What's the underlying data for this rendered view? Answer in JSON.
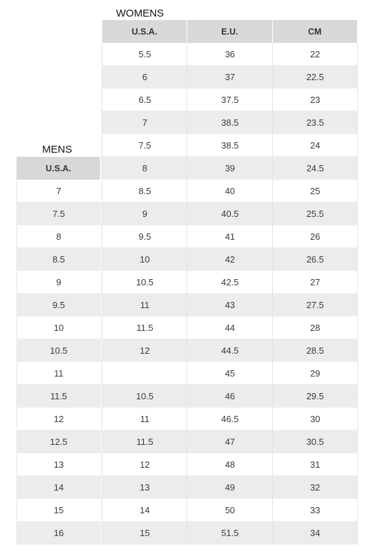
{
  "womens": {
    "title": "WOMENS",
    "headers": [
      "U.S.A.",
      "E.U.",
      "CM"
    ],
    "rows": [
      [
        "5.5",
        "36",
        "22"
      ],
      [
        "6",
        "37",
        "22.5"
      ],
      [
        "6.5",
        "37.5",
        "23"
      ],
      [
        "7",
        "38.5",
        "23.5"
      ],
      [
        "7.5",
        "38.5",
        "24"
      ],
      [
        "8",
        "39",
        "24.5"
      ],
      [
        "8.5",
        "40",
        "25"
      ],
      [
        "9",
        "40.5",
        "25.5"
      ],
      [
        "9.5",
        "41",
        "26"
      ],
      [
        "10",
        "42",
        "26.5"
      ],
      [
        "10.5",
        "42.5",
        "27"
      ],
      [
        "11",
        "43",
        "27.5"
      ],
      [
        "11.5",
        "44",
        "28"
      ],
      [
        "12",
        "44.5",
        "28.5"
      ],
      [
        "",
        "45",
        "29"
      ],
      [
        "10.5",
        "46",
        "29.5"
      ],
      [
        "11",
        "46.5",
        "30"
      ],
      [
        "11.5",
        "47",
        "30.5"
      ],
      [
        "12",
        "48",
        "31"
      ],
      [
        "13",
        "49",
        "32"
      ],
      [
        "14",
        "50",
        "33"
      ],
      [
        "15",
        "51.5",
        "34"
      ]
    ]
  },
  "mens": {
    "title": "MENS",
    "header": "U.S.A.",
    "rows": [
      "7",
      "7.5",
      "8",
      "8.5",
      "9",
      "9.5",
      "10",
      "10.5",
      "11",
      "11.5",
      "12",
      "12.5",
      "13",
      "14",
      "15",
      "16"
    ]
  }
}
